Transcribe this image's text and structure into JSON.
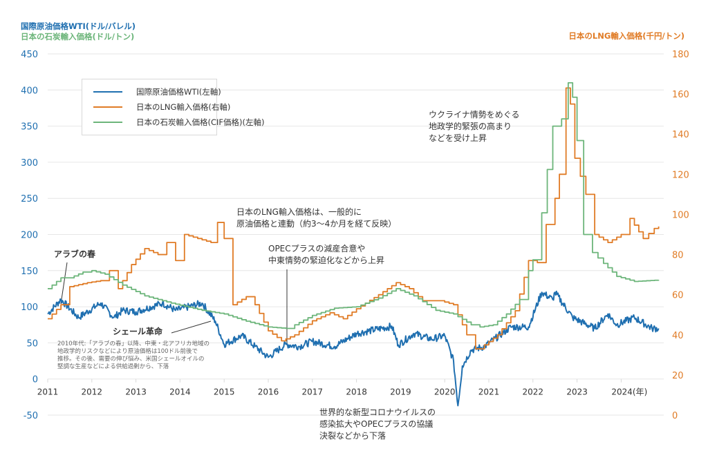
{
  "chart_data": {
    "type": "line",
    "left_axis_title_1": "国際原油価格WTI(ドル/バレル)",
    "left_axis_title_2": "日本の石炭輸入価格(ドル/トン)",
    "right_axis_title": "日本のLNG輸入価格(千円/トン)",
    "left_ticks": [
      "450",
      "400",
      "350",
      "300",
      "250",
      "200",
      "150",
      "100",
      "50",
      "0",
      "-50"
    ],
    "right_ticks": [
      "180",
      "160",
      "140",
      "120",
      "100",
      "80",
      "60",
      "40",
      "20",
      "0"
    ],
    "left_ylim": [
      -50,
      450
    ],
    "right_ylim": [
      0,
      180
    ],
    "x_ticks": [
      "2011",
      "2012",
      "2013",
      "2014",
      "2015",
      "2016",
      "2017",
      "2018",
      "2019",
      "2020",
      "2021",
      "2022",
      "2023",
      "2024(年)"
    ],
    "xlim": [
      2011,
      2024.95
    ],
    "grid": true,
    "legend_position": "top-left",
    "legend": [
      {
        "label": "国際原油価格WTI(左軸)",
        "color": "#1f6fb0"
      },
      {
        "label": "日本のLNG輸入価格(右軸)",
        "color": "#e07b25"
      },
      {
        "label": "日本の石炭輸入価格(CIF価格)(左軸)",
        "color": "#6cb57a"
      }
    ],
    "series": [
      {
        "name": "国際原油価格WTI",
        "axis": "left",
        "style": "line",
        "color": "#1f6fb0",
        "x": [
          2011.0,
          2011.3,
          2011.7,
          2012.2,
          2012.5,
          2012.7,
          2013.0,
          2013.6,
          2013.9,
          2014.5,
          2014.8,
          2015.0,
          2015.4,
          2015.7,
          2016.0,
          2016.4,
          2016.7,
          2017.0,
          2017.5,
          2018.0,
          2018.8,
          2018.95,
          2019.3,
          2019.7,
          2020.0,
          2020.2,
          2020.3,
          2020.4,
          2020.6,
          2020.9,
          2021.5,
          2021.9,
          2022.2,
          2022.45,
          2022.5,
          2022.9,
          2023.4,
          2023.7,
          2023.9,
          2024.3,
          2024.7,
          2024.85
        ],
        "y": [
          90,
          110,
          85,
          105,
          85,
          95,
          93,
          105,
          95,
          105,
          80,
          48,
          60,
          45,
          30,
          48,
          45,
          52,
          45,
          63,
          73,
          47,
          63,
          55,
          60,
          25,
          -37,
          18,
          40,
          45,
          72,
          72,
          120,
          110,
          120,
          85,
          70,
          90,
          75,
          85,
          70,
          70
        ]
      },
      {
        "name": "日本のLNG輸入価格",
        "axis": "right",
        "style": "step",
        "color": "#e07b25",
        "x": [
          2011.0,
          2011.3,
          2011.5,
          2011.9,
          2012.2,
          2012.4,
          2012.6,
          2012.9,
          2013.2,
          2013.5,
          2013.7,
          2013.9,
          2014.1,
          2014.4,
          2014.7,
          2014.85,
          2015.0,
          2015.2,
          2015.5,
          2015.7,
          2016.0,
          2016.3,
          2016.6,
          2017.0,
          2017.4,
          2017.7,
          2018.0,
          2018.5,
          2018.9,
          2019.2,
          2019.5,
          2019.9,
          2020.2,
          2020.5,
          2020.7,
          2020.9,
          2021.2,
          2021.6,
          2021.9,
          2022.1,
          2022.3,
          2022.5,
          2022.6,
          2022.75,
          2022.85,
          2022.95,
          2023.2,
          2023.4,
          2023.7,
          2024.0,
          2024.2,
          2024.5,
          2024.75,
          2024.85
        ],
        "y": [
          48,
          55,
          64,
          66,
          67,
          72,
          63,
          75,
          83,
          80,
          86,
          77,
          90,
          88,
          86,
          96,
          88,
          55,
          59,
          55,
          42,
          37,
          40,
          47,
          51,
          48,
          53,
          60,
          66,
          63,
          57,
          57,
          55,
          40,
          33,
          35,
          40,
          52,
          77,
          76,
          95,
          108,
          120,
          163,
          155,
          128,
          110,
          90,
          86,
          90,
          98,
          88,
          93,
          94
        ]
      },
      {
        "name": "日本の石炭輸入価格(CIF価格)",
        "axis": "left",
        "style": "step",
        "color": "#6cb57a",
        "x": [
          2011.0,
          2011.3,
          2011.5,
          2011.8,
          2012.0,
          2012.3,
          2012.7,
          2013.2,
          2013.8,
          2014.5,
          2015.0,
          2015.5,
          2016.0,
          2016.4,
          2016.6,
          2017.0,
          2017.5,
          2018.0,
          2018.5,
          2018.9,
          2019.3,
          2019.8,
          2020.2,
          2020.6,
          2020.8,
          2021.1,
          2021.4,
          2021.7,
          2021.9,
          2022.0,
          2022.2,
          2022.45,
          2022.65,
          2022.8,
          2022.9,
          2023.0,
          2023.15,
          2023.35,
          2023.6,
          2023.9,
          2024.3,
          2024.85
        ],
        "y": [
          125,
          140,
          140,
          148,
          150,
          145,
          130,
          115,
          105,
          95,
          90,
          80,
          72,
          70,
          75,
          88,
          98,
          100,
          112,
          125,
          115,
          95,
          90,
          75,
          72,
          75,
          90,
          110,
          150,
          165,
          230,
          350,
          360,
          410,
          390,
          330,
          200,
          175,
          160,
          142,
          135,
          137
        ]
      }
    ],
    "annotations": {
      "arab_spring": "アラブの春",
      "shale_title": "シェール革命",
      "shale_note": [
        "2010年代:「アラブの春」以降、中東・北アフリカ地域の",
        "地政学的リスクなどにより原油価格は100ドル前後で",
        "推移。その後、需要の伸び悩み、米国シェールオイルの",
        "堅調な生産などによる供給過剰から、下落"
      ],
      "lng_link": [
        "日本のLNG輸入価格は、一般的に",
        "原油価格と連動（約3〜4か月を経て反映）"
      ],
      "opec": [
        "OPECプラスの減産合意や",
        "中東情勢の緊迫化などから上昇"
      ],
      "ukraine": [
        "ウクライナ情勢をめぐる",
        "地政学的緊張の高まり",
        "などを受け上昇"
      ],
      "covid": [
        "世界的な新型コロナウイルスの",
        "感染拡大やOPECプラスの協議",
        "決裂などから下落"
      ]
    }
  }
}
